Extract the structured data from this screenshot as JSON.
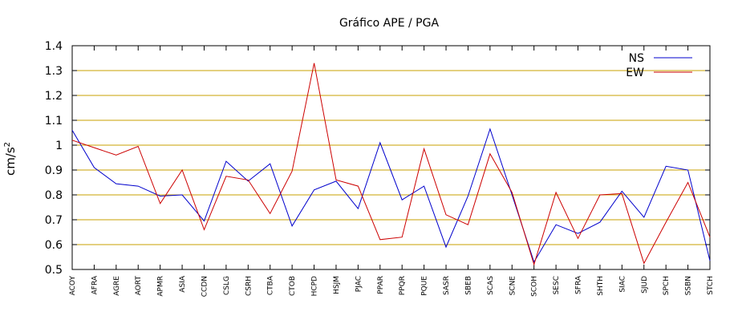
{
  "chart_data": {
    "type": "line",
    "title": "Gráfico  APE / PGA",
    "xlabel": "",
    "ylabel": "cm/s",
    "ylabel_sup": "2",
    "ylim": [
      0.5,
      1.4
    ],
    "yticks": [
      "0.5",
      "0.6",
      "0.7",
      "0.8",
      "0.9",
      "1",
      "1.1",
      "1.2",
      "1.3",
      "1.4"
    ],
    "grid": "horizontal",
    "legend_position": "top-right",
    "categories": [
      "ACOY",
      "AFRA",
      "AGRE",
      "AORT",
      "APMR",
      "ASIA",
      "CCDN",
      "CSLG",
      "CSRH",
      "CTBA",
      "CTOB",
      "HCPD",
      "HSJM",
      "PJAC",
      "PPAR",
      "PPQR",
      "PQUE",
      "SASR",
      "SBEB",
      "SCAS",
      "SCNE",
      "SCOH",
      "SESC",
      "SFRA",
      "SHTH",
      "SIAC",
      "SJUD",
      "SPCH",
      "SSBN",
      "STCH"
    ],
    "series": [
      {
        "name": "NS",
        "color": "#0000cc",
        "values": [
          1.06,
          0.91,
          0.845,
          0.835,
          0.795,
          0.8,
          0.695,
          0.935,
          0.855,
          0.925,
          0.675,
          0.82,
          0.855,
          0.745,
          1.01,
          0.78,
          0.835,
          0.59,
          0.795,
          1.065,
          0.8,
          0.53,
          0.68,
          0.645,
          0.69,
          0.815,
          0.71,
          0.915,
          0.9,
          0.535
        ]
      },
      {
        "name": "EW",
        "color": "#cc0000",
        "values": [
          1.02,
          0.99,
          0.96,
          0.995,
          0.765,
          0.9,
          0.66,
          0.875,
          0.86,
          0.725,
          0.895,
          1.33,
          0.86,
          0.835,
          0.62,
          0.63,
          0.985,
          0.72,
          0.68,
          0.965,
          0.81,
          0.52,
          0.81,
          0.625,
          0.8,
          0.805,
          0.525,
          0.69,
          0.85,
          0.63
        ]
      }
    ]
  },
  "colors": {
    "grid": "#c8a000",
    "frame": "#000000"
  }
}
